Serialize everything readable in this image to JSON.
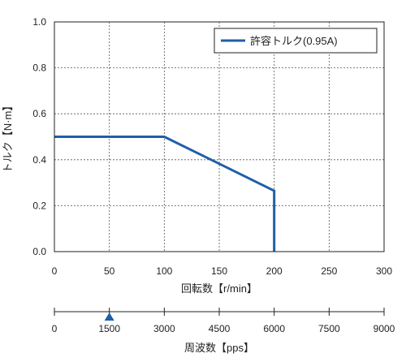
{
  "chart_data": {
    "type": "line",
    "ylabel": "トルク【N·m】",
    "xlabel": "回転数【r/min】",
    "xlim": [
      0,
      300
    ],
    "ylim": [
      0,
      1.0
    ],
    "x_ticks": [
      0,
      50,
      100,
      150,
      200,
      250,
      300
    ],
    "y_ticks": [
      0.0,
      0.2,
      0.4,
      0.6,
      0.8,
      1.0
    ],
    "x_tick_labels": [
      "0",
      "50",
      "100",
      "150",
      "200",
      "250",
      "300"
    ],
    "y_tick_labels": [
      "0.0",
      "0.2",
      "0.4",
      "0.6",
      "0.8",
      "1.0"
    ],
    "grid": true,
    "legend_position": "top-right",
    "series": [
      {
        "name": "許容トルク(0.95A)",
        "color": "#1f5fa6",
        "x": [
          0,
          100,
          200,
          200
        ],
        "y": [
          0.5,
          0.5,
          0.265,
          0.0
        ]
      }
    ],
    "secondary_axis": {
      "label": "周波数【pps】",
      "ticks": [
        0,
        1500,
        3000,
        4500,
        6000,
        7500,
        9000
      ],
      "tick_labels": [
        "0",
        "1500",
        "3000",
        "4500",
        "6000",
        "7500",
        "9000"
      ],
      "marker_value": 1500,
      "marker_shape": "triangle-up",
      "marker_color": "#1f5fa6"
    }
  }
}
